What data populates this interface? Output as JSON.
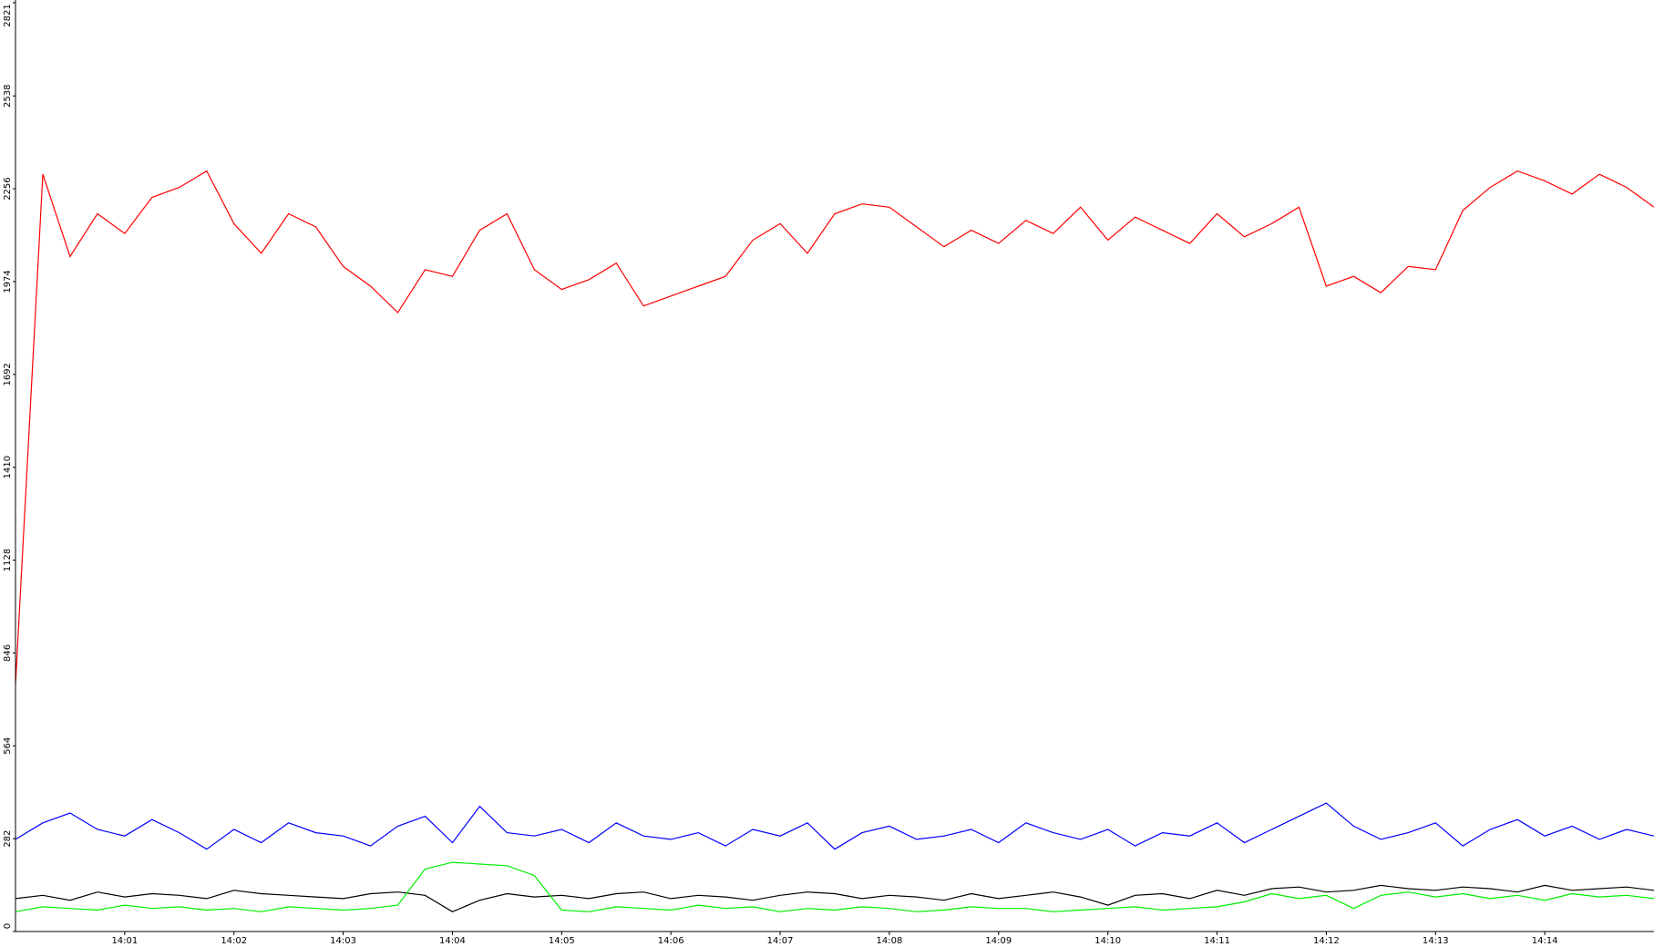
{
  "chart_data": {
    "type": "line",
    "x": [
      0,
      0.25,
      0.5,
      0.75,
      1,
      1.25,
      1.5,
      1.75,
      2,
      2.25,
      2.5,
      2.75,
      3,
      3.25,
      3.5,
      3.75,
      4,
      4.25,
      4.5,
      4.75,
      5,
      5.25,
      5.5,
      5.75,
      6,
      6.25,
      6.5,
      6.75,
      7,
      7.25,
      7.5,
      7.75,
      8,
      8.25,
      8.5,
      8.75,
      9,
      9.25,
      9.5,
      9.75,
      10,
      10.25,
      10.5,
      10.75,
      11,
      11.25,
      11.5,
      11.75,
      12,
      12.25,
      12.5,
      12.75,
      13,
      13.25,
      13.5,
      13.75,
      14,
      14.25,
      14.5,
      14.75,
      15
    ],
    "series": [
      {
        "color": "#ff0000",
        "values": [
          750,
          2300,
          2050,
          2180,
          2120,
          2230,
          2260,
          2310,
          2150,
          2060,
          2180,
          2140,
          2020,
          1960,
          1880,
          2010,
          1990,
          2130,
          2180,
          2010,
          1950,
          1980,
          2030,
          1900,
          1930,
          1960,
          1990,
          2100,
          2150,
          2060,
          2180,
          2210,
          2200,
          2140,
          2080,
          2130,
          2090,
          2160,
          2120,
          2200,
          2100,
          2170,
          2130,
          2090,
          2180,
          2110,
          2150,
          2200,
          1960,
          1990,
          1940,
          2020,
          2010,
          2190,
          2260,
          2310,
          2280,
          2240,
          2300,
          2260,
          2200
        ]
      },
      {
        "color": "#0000ff",
        "values": [
          280,
          330,
          360,
          310,
          290,
          340,
          300,
          250,
          310,
          270,
          330,
          300,
          290,
          260,
          320,
          350,
          270,
          380,
          300,
          290,
          310,
          270,
          330,
          290,
          280,
          300,
          260,
          310,
          290,
          330,
          250,
          300,
          320,
          280,
          290,
          310,
          270,
          330,
          300,
          280,
          310,
          260,
          300,
          290,
          330,
          270,
          310,
          350,
          390,
          320,
          280,
          300,
          330,
          260,
          310,
          340,
          290,
          320,
          280,
          310,
          290
        ]
      },
      {
        "color": "#000000",
        "values": [
          100,
          110,
          95,
          120,
          105,
          115,
          110,
          100,
          125,
          115,
          110,
          105,
          100,
          115,
          120,
          110,
          60,
          95,
          115,
          105,
          110,
          100,
          115,
          120,
          100,
          110,
          105,
          95,
          110,
          120,
          115,
          100,
          110,
          105,
          95,
          115,
          100,
          110,
          120,
          105,
          80,
          110,
          115,
          100,
          125,
          110,
          130,
          135,
          120,
          125,
          140,
          130,
          125,
          135,
          130,
          120,
          140,
          125,
          130,
          135,
          125
        ]
      },
      {
        "color": "#00ee00",
        "values": [
          60,
          75,
          70,
          65,
          80,
          70,
          75,
          65,
          70,
          60,
          75,
          70,
          65,
          70,
          80,
          190,
          210,
          205,
          200,
          170,
          65,
          60,
          75,
          70,
          65,
          80,
          70,
          75,
          60,
          70,
          65,
          75,
          70,
          60,
          65,
          75,
          70,
          70,
          60,
          65,
          70,
          75,
          65,
          70,
          75,
          90,
          115,
          100,
          110,
          70,
          110,
          120,
          105,
          115,
          100,
          110,
          95,
          115,
          105,
          110,
          100
        ]
      }
    ],
    "xlim": [
      0,
      15
    ],
    "xticks": [
      {
        "value": 1,
        "label": "14:01"
      },
      {
        "value": 2,
        "label": "14:02"
      },
      {
        "value": 3,
        "label": "14:03"
      },
      {
        "value": 4,
        "label": "14:04"
      },
      {
        "value": 5,
        "label": "14:05"
      },
      {
        "value": 6,
        "label": "14:06"
      },
      {
        "value": 7,
        "label": "14:07"
      },
      {
        "value": 8,
        "label": "14:08"
      },
      {
        "value": 9,
        "label": "14:09"
      },
      {
        "value": 10,
        "label": "14:10"
      },
      {
        "value": 11,
        "label": "14:11"
      },
      {
        "value": 12,
        "label": "14:12"
      },
      {
        "value": 13,
        "label": "14:13"
      },
      {
        "value": 14,
        "label": "14:14"
      }
    ],
    "ylim": [
      0,
      2821
    ],
    "yticks": [
      0,
      282,
      564,
      846,
      1128,
      1410,
      1692,
      1974,
      2256,
      2538,
      2821
    ]
  }
}
